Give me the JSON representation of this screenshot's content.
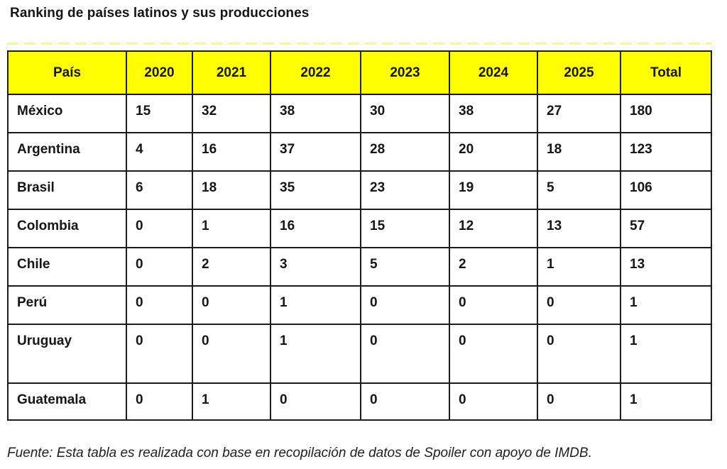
{
  "page_title": "Ranking de países latinos y sus producciones",
  "source_note": "Fuente: Esta tabla es realizada con base en recopilación de datos de Spoiler con apoyo de IMDB.",
  "colors": {
    "header_bg": "#ffff00",
    "border": "#1c1c1c",
    "text": "#161616",
    "accent_line": "#f5f59e",
    "background": "#ffffff"
  },
  "chart_data": {
    "type": "table",
    "title": "Ranking de países latinos y sus producciones",
    "columns": [
      "País",
      "2020",
      "2021",
      "2022",
      "2023",
      "2024",
      "2025",
      "Total"
    ],
    "rows": [
      {
        "country": "México",
        "values": [
          15,
          32,
          38,
          30,
          38,
          27,
          180
        ]
      },
      {
        "country": "Argentina",
        "values": [
          4,
          16,
          37,
          28,
          20,
          18,
          123
        ]
      },
      {
        "country": "Brasil",
        "values": [
          6,
          18,
          35,
          23,
          19,
          5,
          106
        ]
      },
      {
        "country": "Colombia",
        "values": [
          0,
          1,
          16,
          15,
          12,
          13,
          57
        ]
      },
      {
        "country": "Chile",
        "values": [
          0,
          2,
          3,
          5,
          2,
          1,
          13
        ]
      },
      {
        "country": "Perú",
        "values": [
          0,
          0,
          1,
          0,
          0,
          0,
          1
        ]
      },
      {
        "country": "Uruguay",
        "values": [
          0,
          0,
          1,
          0,
          0,
          0,
          1
        ]
      },
      {
        "country": "Guatemala",
        "values": [
          0,
          1,
          0,
          0,
          0,
          0,
          1
        ]
      }
    ],
    "source_note": "Fuente: Esta tabla es realizada con base en recopilación de datos de Spoiler con apoyo de IMDB.",
    "layout_hints": {
      "header_style": "yellow-highlight",
      "grid": true,
      "cell_text": "bold-left-aligned"
    }
  }
}
